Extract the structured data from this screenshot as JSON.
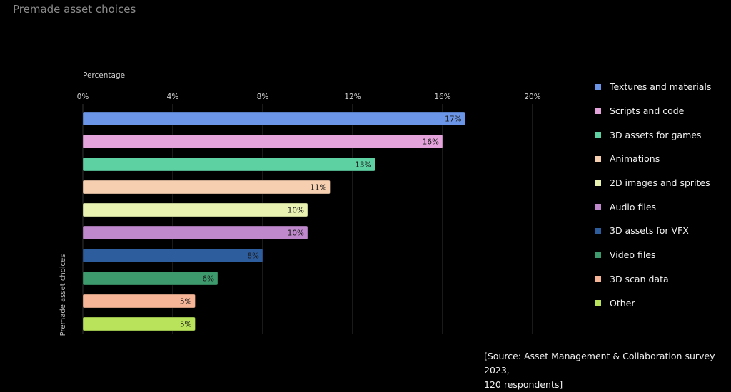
{
  "page": {
    "title": "Premade asset choices"
  },
  "source": {
    "line1": "[Source: Asset Management & Collaboration survey 2023,",
    "line2": "120 respondents]"
  },
  "chart_data": {
    "type": "bar",
    "orientation": "horizontal",
    "xlabel": "Percentage",
    "ylabel": "Premade asset choices",
    "xlim": [
      0,
      20
    ],
    "xticks": [
      0,
      4,
      8,
      12,
      16,
      20
    ],
    "tick_suffix": "%",
    "grid": true,
    "legend_position": "right",
    "categories": [
      "Textures and materials",
      "Scripts and code",
      "3D assets for games",
      "Animations",
      "2D images and sprites",
      "Audio files",
      "3D assets for VFX",
      "Video files",
      "3D scan data",
      "Other"
    ],
    "values": [
      17,
      16,
      13,
      11,
      10,
      10,
      8,
      6,
      5,
      5
    ],
    "colors": [
      "#6b96e8",
      "#e4a3da",
      "#5ed1a2",
      "#f5cfb0",
      "#e9f2b0",
      "#bf88cc",
      "#2e5d9e",
      "#3d9a6c",
      "#f5b596",
      "#b8e35a"
    ]
  }
}
